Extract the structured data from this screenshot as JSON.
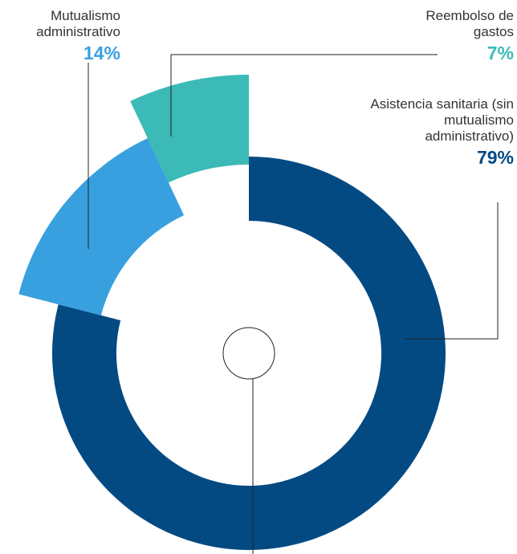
{
  "chart_data": {
    "type": "pie",
    "categories": [
      "Asistencia sanitaria (sin mutualismo administrativo)",
      "Mutualismo administrativo",
      "Reembolso de gastos"
    ],
    "values": [
      79,
      14,
      7
    ],
    "value_labels": [
      "79%",
      "14%",
      "7%"
    ],
    "colors": [
      "#034a83",
      "#38a0df",
      "#3bbab7"
    ]
  }
}
